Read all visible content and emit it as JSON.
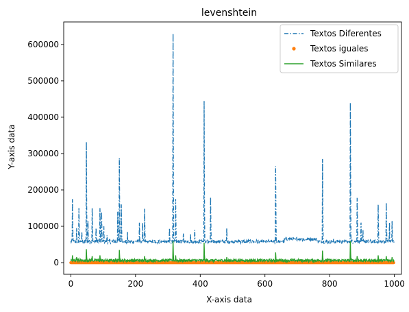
{
  "chart_data": {
    "type": "line",
    "title": "levenshtein",
    "xlabel": "X-axis data",
    "ylabel": "Y-axis data",
    "xlim": [
      -22,
      1022
    ],
    "ylim": [
      -32000,
      662000
    ],
    "xticks": [
      0,
      200,
      400,
      600,
      800,
      1000
    ],
    "xtick_labels": [
      "0",
      "200",
      "400",
      "600",
      "800",
      "1000"
    ],
    "yticks": [
      0,
      100000,
      200000,
      300000,
      400000,
      500000,
      600000
    ],
    "ytick_labels": [
      "0",
      "100000",
      "200000",
      "300000",
      "400000",
      "500000",
      "600000"
    ],
    "grid": false,
    "legend_position": "top-right",
    "series": [
      {
        "name": "Textos Diferentes",
        "style": "dashdot",
        "color": "#1f77b4",
        "baseline": 58000,
        "baseline_plateau": {
          "x_range": [
            660,
            760
          ],
          "value": 65000
        },
        "spikes": [
          [
            5,
            175000
          ],
          [
            18,
            95000
          ],
          [
            25,
            150000
          ],
          [
            34,
            85000
          ],
          [
            48,
            332000
          ],
          [
            53,
            115000
          ],
          [
            66,
            150000
          ],
          [
            78,
            95000
          ],
          [
            90,
            150000
          ],
          [
            95,
            140000
          ],
          [
            102,
            100000
          ],
          [
            112,
            75000
          ],
          [
            145,
            140000
          ],
          [
            150,
            287000
          ],
          [
            156,
            160000
          ],
          [
            175,
            85000
          ],
          [
            212,
            110000
          ],
          [
            222,
            110000
          ],
          [
            228,
            148000
          ],
          [
            305,
            95000
          ],
          [
            316,
            630000
          ],
          [
            324,
            175000
          ],
          [
            348,
            80000
          ],
          [
            370,
            80000
          ],
          [
            383,
            90000
          ],
          [
            412,
            445000
          ],
          [
            432,
            180000
          ],
          [
            482,
            95000
          ],
          [
            633,
            265000
          ],
          [
            712,
            65000
          ],
          [
            778,
            285000
          ],
          [
            812,
            65000
          ],
          [
            864,
            440000
          ],
          [
            885,
            178000
          ],
          [
            897,
            110000
          ],
          [
            903,
            90000
          ],
          [
            950,
            160000
          ],
          [
            975,
            165000
          ],
          [
            985,
            110000
          ],
          [
            993,
            115000
          ]
        ]
      },
      {
        "name": "Textos iguales",
        "style": "markers",
        "color": "#ff7f0e",
        "value": 0
      },
      {
        "name": "Textos Similares",
        "style": "solid",
        "color": "#2ca02c",
        "baseline": 4000,
        "spikes": [
          [
            5,
            20000
          ],
          [
            18,
            15000
          ],
          [
            25,
            10000
          ],
          [
            48,
            37000
          ],
          [
            66,
            18000
          ],
          [
            90,
            20000
          ],
          [
            150,
            35000
          ],
          [
            228,
            18000
          ],
          [
            305,
            10000
          ],
          [
            316,
            60000
          ],
          [
            324,
            20000
          ],
          [
            412,
            55000
          ],
          [
            482,
            15000
          ],
          [
            633,
            28000
          ],
          [
            778,
            33000
          ],
          [
            864,
            59000
          ],
          [
            885,
            18000
          ],
          [
            950,
            20000
          ],
          [
            975,
            18000
          ],
          [
            993,
            15000
          ]
        ]
      }
    ]
  }
}
